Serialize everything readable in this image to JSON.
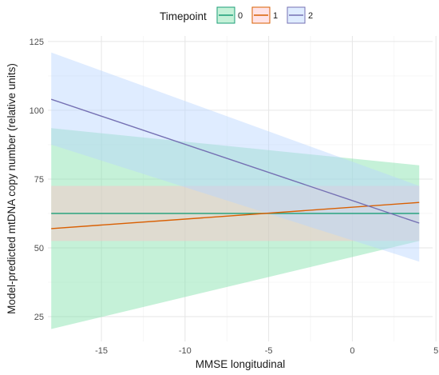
{
  "chart_data": {
    "type": "line",
    "xlabel": "MMSE longitudinal",
    "ylabel": "Model-predicted mtDNA copy number (relative units)",
    "xlim": [
      -18.2,
      4.8
    ],
    "ylim": [
      16,
      127
    ],
    "x_ticks": [
      -15,
      -10,
      -5,
      0,
      5
    ],
    "y_ticks": [
      25,
      50,
      75,
      100,
      125
    ],
    "grid": true,
    "legend": {
      "title": "Timepoint",
      "position": "top"
    },
    "series": [
      {
        "name": "0",
        "color": "#1b9e77",
        "fill": "#7fe0a8",
        "x": [
          -18,
          4
        ],
        "y": [
          62.5,
          62.5
        ],
        "lower": [
          20.5,
          52.5
        ],
        "upper": [
          93.5,
          80
        ]
      },
      {
        "name": "1",
        "color": "#d95f02",
        "fill": "#ffc0c8",
        "x": [
          -18,
          4
        ],
        "y": [
          57,
          66.5
        ],
        "lower": [
          52.5,
          52.5
        ],
        "upper": [
          72.5,
          72.5
        ]
      },
      {
        "name": "2",
        "color": "#7570b3",
        "fill": "#b9d4ff",
        "x": [
          -18,
          4
        ],
        "y": [
          104,
          59
        ],
        "lower": [
          87.5,
          45
        ],
        "upper": [
          121,
          72.5
        ]
      }
    ]
  }
}
